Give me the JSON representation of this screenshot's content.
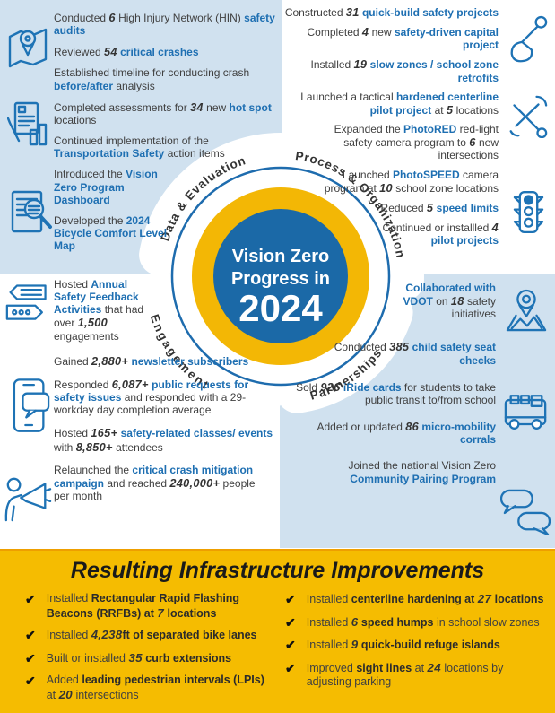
{
  "center_circle": {
    "line1": "Vision Zero",
    "line2": "Progress in",
    "line3": "2024"
  },
  "ring_labels": {
    "data_evaluation": "Data & Evaluation",
    "process_organization": "Process & Organization",
    "engagement": "Engagement",
    "partnerships": "Partnerships"
  },
  "colors": {
    "accent_blue": "#1e6fb2",
    "panel_blue": "#d0e1ef",
    "ring_yellow": "#f3b705",
    "center_blue": "#1b69a7",
    "footer_yellow": "#f5bc01",
    "text_dark": "#404040"
  },
  "icons": {
    "data_evaluation": [
      "map-audit-icon",
      "assessment-chart-icon",
      "report-magnifier-icon"
    ],
    "engagement": [
      "feedback-bubbles-icon",
      "phone-newsletter-icon",
      "megaphone-outreach-icon"
    ],
    "process_organization": [
      "shovel-icon",
      "tools-icon",
      "traffic-light-icon"
    ],
    "partnerships": [
      "map-pin-icon",
      "bus-icon",
      "chat-bubbles-icon"
    ]
  },
  "sections": {
    "data_evaluation": {
      "items": [
        [
          [
            "t",
            "Conducted "
          ],
          [
            "n",
            "6"
          ],
          [
            "t",
            " High Injury Network (HIN) "
          ],
          [
            "b",
            "safety audits"
          ]
        ],
        [
          [
            "t",
            "Reviewed "
          ],
          [
            "n",
            "54"
          ],
          [
            "t",
            " "
          ],
          [
            "b",
            "critical crashes"
          ]
        ],
        [
          [
            "t",
            "Established timeline for conducting crash "
          ],
          [
            "b",
            "before/after"
          ],
          [
            "t",
            " analysis"
          ]
        ],
        [
          [
            "t",
            "Completed assessments for "
          ],
          [
            "n",
            "34"
          ],
          [
            "t",
            " new "
          ],
          [
            "b",
            "hot spot"
          ],
          [
            "t",
            " locations"
          ]
        ],
        [
          [
            "t",
            "Continued implementation of the "
          ],
          [
            "b",
            "Transportation Safety"
          ],
          [
            "t",
            " action items"
          ]
        ],
        [
          [
            "t",
            "Introduced the "
          ],
          [
            "b",
            "Vision Zero Program Dashboard"
          ]
        ],
        [
          [
            "t",
            "Developed the "
          ],
          [
            "b",
            "2024 Bicycle Comfort Level Map"
          ]
        ]
      ]
    },
    "process_organization": {
      "items": [
        [
          [
            "t",
            "Constructed "
          ],
          [
            "n",
            "31"
          ],
          [
            "t",
            " "
          ],
          [
            "b",
            "quick-build safety projects"
          ]
        ],
        [
          [
            "t",
            "Completed "
          ],
          [
            "n",
            "4"
          ],
          [
            "t",
            " new "
          ],
          [
            "b",
            "safety-driven capital project"
          ]
        ],
        [
          [
            "t",
            "Installed "
          ],
          [
            "n",
            "19"
          ],
          [
            "t",
            " "
          ],
          [
            "b",
            "slow zones / school zone retrofits"
          ]
        ],
        [
          [
            "t",
            "Launched a tactical "
          ],
          [
            "b",
            "hardened centerline pilot project"
          ],
          [
            "t",
            " at "
          ],
          [
            "n",
            "5"
          ],
          [
            "t",
            " locations"
          ]
        ],
        [
          [
            "t",
            "Expanded the "
          ],
          [
            "b",
            "PhotoRED"
          ],
          [
            "t",
            " red-light safety camera program to "
          ],
          [
            "n",
            "6"
          ],
          [
            "t",
            " new intersections"
          ]
        ],
        [
          [
            "t",
            "Launched "
          ],
          [
            "b",
            "PhotoSPEED"
          ],
          [
            "t",
            " camera program at "
          ],
          [
            "n",
            "10"
          ],
          [
            "t",
            " school zone locations"
          ]
        ],
        [
          [
            "t",
            "Reduced "
          ],
          [
            "n",
            "5"
          ],
          [
            "t",
            " "
          ],
          [
            "b",
            "speed limits"
          ]
        ],
        [
          [
            "t",
            "Continued or installled "
          ],
          [
            "n",
            "4"
          ],
          [
            "t",
            " "
          ],
          [
            "b",
            "pilot projects"
          ]
        ]
      ]
    },
    "engagement": {
      "items": [
        [
          [
            "t",
            "Hosted "
          ],
          [
            "b",
            "Annual Safety Feedback Activities"
          ],
          [
            "t",
            " that had over "
          ],
          [
            "n",
            "1,500"
          ],
          [
            "t",
            " engagements"
          ]
        ],
        [
          [
            "t",
            "Gained "
          ],
          [
            "n",
            "2,880+"
          ],
          [
            "t",
            " "
          ],
          [
            "b",
            "newsletter subscribers"
          ]
        ],
        [
          [
            "t",
            "Responded "
          ],
          [
            "n",
            "6,087+"
          ],
          [
            "t",
            " "
          ],
          [
            "b",
            "public requests for safety issues"
          ],
          [
            "t",
            " and responded with a 29-workday day completion average"
          ]
        ],
        [
          [
            "t",
            "Hosted "
          ],
          [
            "n",
            "165+"
          ],
          [
            "t",
            " "
          ],
          [
            "b",
            "safety-related classes/ events"
          ],
          [
            "t",
            " with "
          ],
          [
            "n",
            "8,850+"
          ],
          [
            "t",
            " attendees"
          ]
        ],
        [
          [
            "t",
            "Relaunched the "
          ],
          [
            "b",
            "critical crash mitigation campaign"
          ],
          [
            "t",
            " and reached "
          ],
          [
            "n",
            "240,000+"
          ],
          [
            "t",
            " people per month"
          ]
        ]
      ]
    },
    "partnerships": {
      "items": [
        [
          [
            "b",
            "Collaborated with VDOT"
          ],
          [
            "t",
            " on "
          ],
          [
            "n",
            "18"
          ],
          [
            "t",
            " safety initiatives"
          ]
        ],
        [
          [
            "t",
            "Conducted "
          ],
          [
            "n",
            "385"
          ],
          [
            "t",
            " "
          ],
          [
            "b",
            "child safety seat checks"
          ]
        ],
        [
          [
            "t",
            "Sold "
          ],
          [
            "n",
            "926"
          ],
          [
            "t",
            " "
          ],
          [
            "b",
            "iRide cards"
          ],
          [
            "t",
            " for students to take public transit to/from school"
          ]
        ],
        [
          [
            "t",
            "Added or updated "
          ],
          [
            "n",
            "86"
          ],
          [
            "t",
            " "
          ],
          [
            "b",
            "micro-mobility corrals"
          ]
        ],
        [
          [
            "t",
            "Joined the national Vision Zero "
          ],
          [
            "b",
            "Community Pairing Program"
          ]
        ]
      ]
    }
  },
  "footer": {
    "title": "Resulting Infrastructure Improvements",
    "check_glyph": "✔",
    "left_items": [
      [
        [
          "t",
          "Installed "
        ],
        [
          "B",
          "Rectangular Rapid Flashing Beacons (RRFBs) at "
        ],
        [
          "n",
          "7"
        ],
        [
          "B",
          " locations"
        ]
      ],
      [
        [
          "t",
          "Installed "
        ],
        [
          "n",
          "4,238"
        ],
        [
          "B",
          "ft of separated bike lanes"
        ]
      ],
      [
        [
          "t",
          "Built or installed "
        ],
        [
          "n",
          "35"
        ],
        [
          "B",
          " curb extensions"
        ]
      ],
      [
        [
          "t",
          "Added "
        ],
        [
          "B",
          "leading pedestrian intervals (LPIs)"
        ],
        [
          "t",
          " at "
        ],
        [
          "n",
          "20"
        ],
        [
          "t",
          " intersections"
        ]
      ]
    ],
    "right_items": [
      [
        [
          "t",
          "Installed "
        ],
        [
          "B",
          "centerline hardening at "
        ],
        [
          "n",
          "27"
        ],
        [
          "B",
          " locations"
        ]
      ],
      [
        [
          "t",
          "Installed "
        ],
        [
          "n",
          "6"
        ],
        [
          "B",
          " speed humps"
        ],
        [
          "t",
          " in school slow zones"
        ]
      ],
      [
        [
          "t",
          "Installed "
        ],
        [
          "n",
          "9"
        ],
        [
          "B",
          " quick-build refuge islands"
        ]
      ],
      [
        [
          "t",
          "Improved "
        ],
        [
          "B",
          "sight lines"
        ],
        [
          "t",
          " at "
        ],
        [
          "n",
          "24"
        ],
        [
          "t",
          " locations by adjusting parking"
        ]
      ]
    ]
  }
}
